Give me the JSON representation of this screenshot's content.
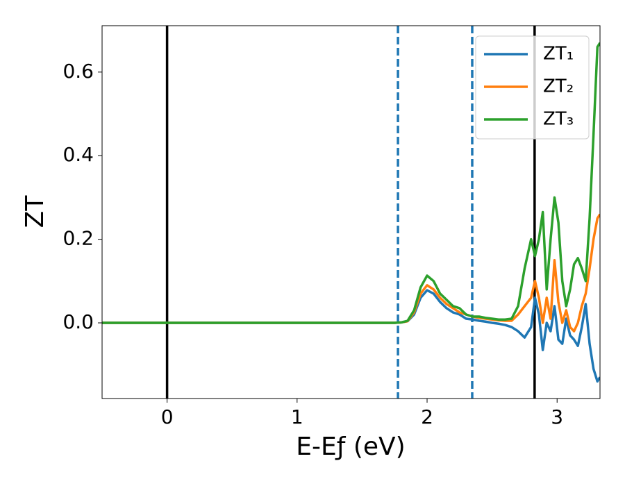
{
  "chart_data": {
    "type": "line",
    "xlabel": "E-Eƒ (eV)",
    "ylabel": "ZT",
    "xlim": [
      -0.5,
      3.33
    ],
    "ylim": [
      -0.181,
      0.711
    ],
    "xticks": [
      0,
      1,
      2,
      3
    ],
    "yticks": [
      {
        "value": 0,
        "label": "0.0"
      },
      0.2,
      0.4,
      0.6
    ],
    "legend": "upper right",
    "vlines": [
      {
        "x": 0,
        "color": "#000000",
        "style": "solid"
      },
      {
        "x": 2.827,
        "color": "#000000",
        "style": "solid"
      },
      {
        "x": 1.776,
        "color": "#1f77b4",
        "style": "dashed"
      },
      {
        "x": 2.347,
        "color": "#1f77b4",
        "style": "dashed"
      }
    ],
    "x": [
      -0.5,
      0,
      0.5,
      1,
      1.5,
      1.75,
      1.8,
      1.85,
      1.9,
      1.95,
      2.0,
      2.05,
      2.1,
      2.15,
      2.2,
      2.25,
      2.3,
      2.35,
      2.4,
      2.45,
      2.5,
      2.55,
      2.6,
      2.65,
      2.7,
      2.75,
      2.8,
      2.83,
      2.86,
      2.89,
      2.92,
      2.95,
      2.98,
      3.01,
      3.04,
      3.07,
      3.1,
      3.13,
      3.16,
      3.19,
      3.22,
      3.25,
      3.28,
      3.31,
      3.33
    ],
    "series": [
      {
        "name": "ZT₁",
        "color": "#1f77b4",
        "values": [
          0,
          0,
          0,
          0,
          0,
          0,
          0.001,
          0.004,
          0.02,
          0.06,
          0.078,
          0.07,
          0.05,
          0.035,
          0.025,
          0.02,
          0.01,
          0.008,
          0.005,
          0.003,
          0.0,
          -0.002,
          -0.005,
          -0.01,
          -0.02,
          -0.035,
          -0.01,
          0.06,
          0.02,
          -0.065,
          0.0,
          -0.02,
          0.04,
          -0.04,
          -0.05,
          0.01,
          -0.03,
          -0.04,
          -0.055,
          -0.01,
          0.045,
          -0.05,
          -0.11,
          -0.14,
          -0.13
        ]
      },
      {
        "name": "ZT₂",
        "color": "#ff7f0e",
        "values": [
          0,
          0,
          0,
          0,
          0,
          0,
          0.001,
          0.004,
          0.025,
          0.07,
          0.09,
          0.08,
          0.06,
          0.045,
          0.035,
          0.025,
          0.02,
          0.015,
          0.012,
          0.01,
          0.008,
          0.006,
          0.005,
          0.005,
          0.02,
          0.04,
          0.06,
          0.1,
          0.06,
          0.0,
          0.06,
          0.01,
          0.15,
          0.05,
          0.0,
          0.03,
          -0.01,
          -0.02,
          0.0,
          0.04,
          0.07,
          0.13,
          0.2,
          0.25,
          0.26
        ]
      },
      {
        "name": "ZT₃",
        "color": "#2ca02c",
        "values": [
          0,
          0,
          0,
          0,
          0,
          0,
          0.001,
          0.005,
          0.03,
          0.085,
          0.113,
          0.1,
          0.07,
          0.055,
          0.04,
          0.035,
          0.02,
          0.015,
          0.015,
          0.012,
          0.01,
          0.008,
          0.008,
          0.01,
          0.04,
          0.13,
          0.2,
          0.16,
          0.2,
          0.265,
          0.08,
          0.2,
          0.3,
          0.24,
          0.1,
          0.04,
          0.08,
          0.14,
          0.155,
          0.13,
          0.1,
          0.25,
          0.45,
          0.66,
          0.67
        ]
      }
    ]
  }
}
